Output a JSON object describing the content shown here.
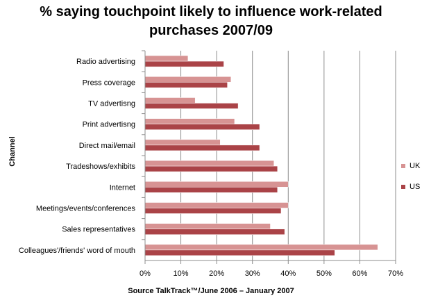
{
  "chart_data": {
    "type": "bar",
    "orientation": "horizontal",
    "title_lines": [
      "% saying touchpoint likely to influence work-related",
      "purchases 2007/09"
    ],
    "ylabel": "Channel",
    "source": "Source TalkTrack™/June  2006 – January  2007",
    "categories": [
      "Radio advertising",
      "Press coverage",
      "TV advertisng",
      "Print advertisng",
      "Direct mail/email",
      "Tradeshows/exhibits",
      "Internet",
      "Meetings/events/conferences",
      "Sales representatives",
      "Colleagues'/friends' word of mouth"
    ],
    "series": [
      {
        "name": "UK",
        "color": "#D79393",
        "values": [
          12,
          24,
          14,
          25,
          21,
          36,
          40,
          40,
          35,
          65
        ]
      },
      {
        "name": "US",
        "color": "#AA4347",
        "values": [
          22,
          23,
          26,
          32,
          32,
          37,
          37,
          38,
          39,
          53
        ]
      }
    ],
    "xlim": [
      0,
      70
    ],
    "xticks": [
      0,
      10,
      20,
      30,
      40,
      50,
      60,
      70
    ],
    "tick_suffix": "%",
    "grid": true,
    "legend_position": "right"
  }
}
